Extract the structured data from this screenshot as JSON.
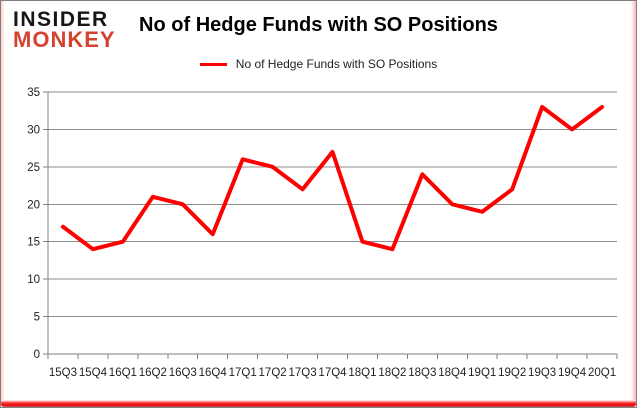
{
  "branding": {
    "logo_line1": "INSIDER",
    "logo_line2": "MONKEY",
    "logo_black": "#161616",
    "logo_red": "#d5432f"
  },
  "header": {
    "title": "No of Hedge Funds with SO Positions"
  },
  "legend": {
    "label": "No of Hedge Funds with SO Positions",
    "swatch_color": "#ff0000"
  },
  "chart_data": {
    "type": "line",
    "title": "No of Hedge Funds with SO Positions",
    "categories": [
      "15Q3",
      "15Q4",
      "16Q1",
      "16Q2",
      "16Q3",
      "16Q4",
      "17Q1",
      "17Q2",
      "17Q3",
      "17Q4",
      "18Q1",
      "18Q2",
      "18Q3",
      "18Q4",
      "19Q1",
      "19Q2",
      "19Q3",
      "19Q4",
      "20Q1"
    ],
    "series": [
      {
        "name": "No of Hedge Funds with SO Positions",
        "color": "#ff0000",
        "values": [
          17,
          14,
          15,
          21,
          20,
          16,
          26,
          25,
          22,
          27,
          15,
          14,
          24,
          20,
          19,
          22,
          33,
          30,
          33
        ]
      }
    ],
    "xlabel": "",
    "ylabel": "",
    "ylim": [
      0,
      35
    ],
    "ytick_step": 5,
    "grid": true,
    "legend_position": "top",
    "grid_color": "#8c8c8c",
    "axis_color": "#808080",
    "tick_label_color": "#1f1f1f"
  }
}
